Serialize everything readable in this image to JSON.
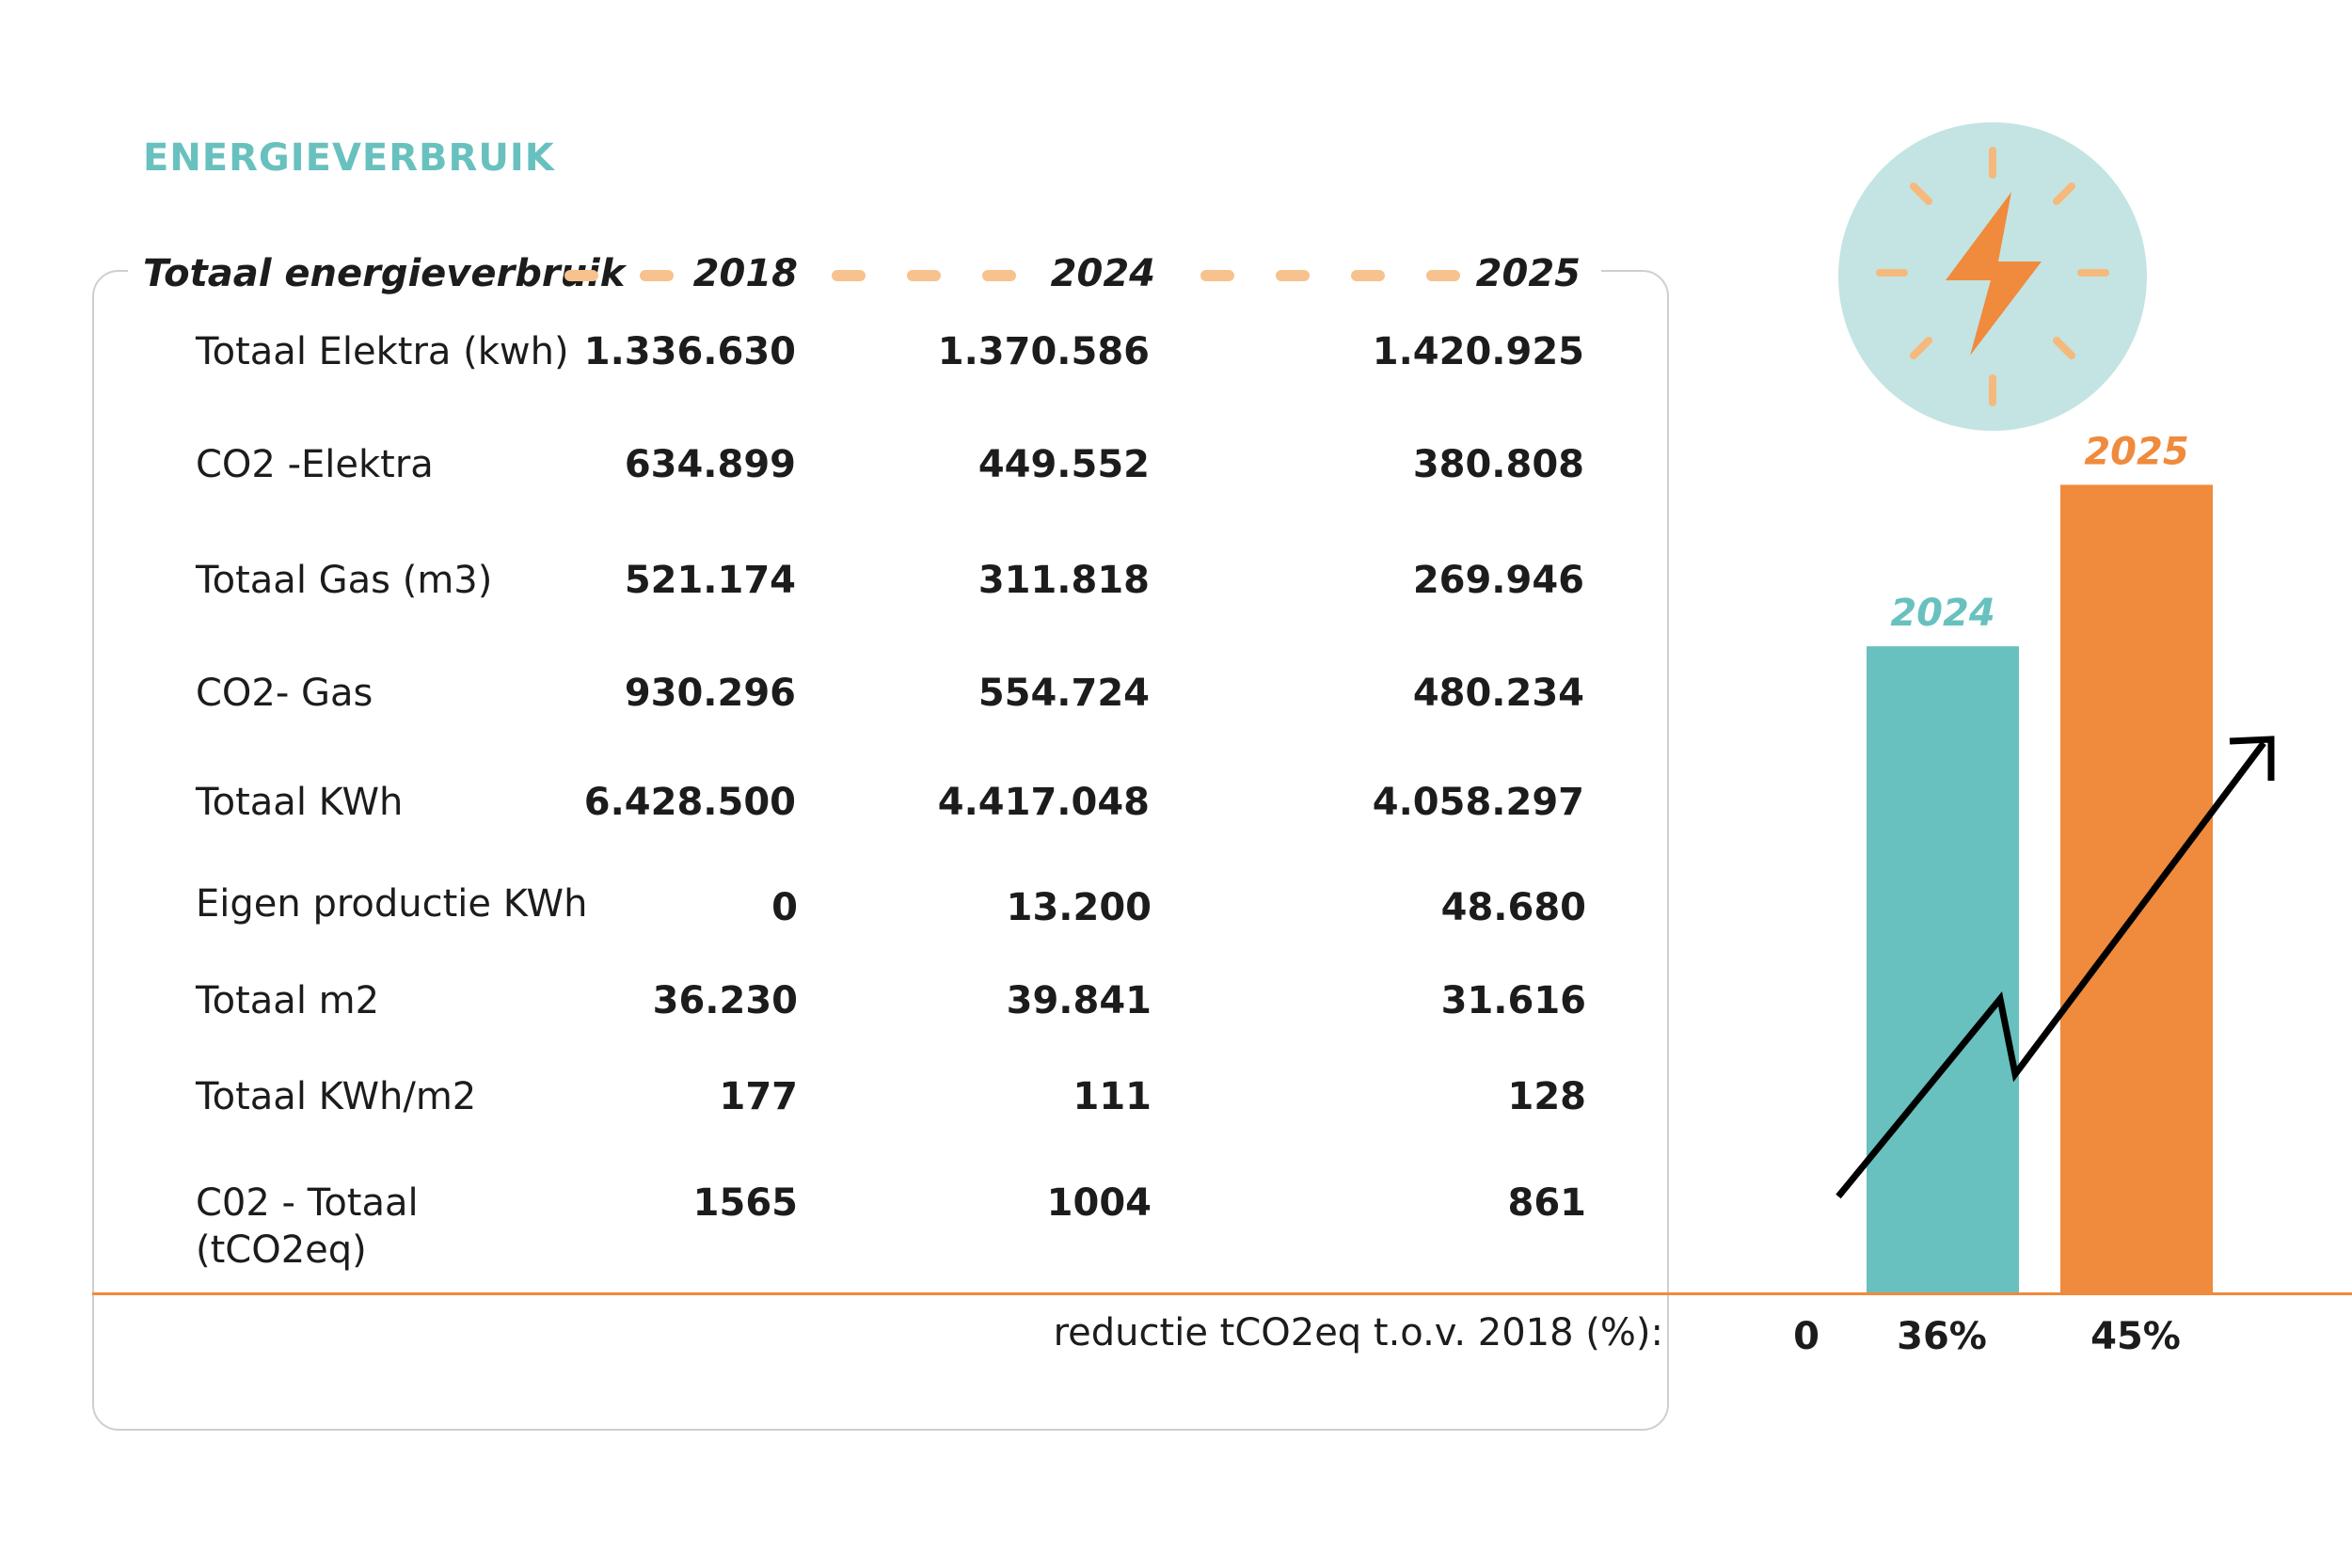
{
  "title": "ENERGIEVERBRUIK",
  "table": {
    "header_label": "Totaal energieverbruik",
    "years": [
      "2018",
      "2024",
      "2025"
    ],
    "rows": [
      {
        "label": "Totaal Elektra (kwh)",
        "values": [
          "1.336.630",
          "1.370.586",
          "1.420.925"
        ]
      },
      {
        "label": "CO2 -Elektra",
        "values": [
          "634.899",
          "449.552",
          "380.808"
        ]
      },
      {
        "label": "Totaal Gas (m3)",
        "values": [
          "521.174",
          "311.818",
          "269.946"
        ]
      },
      {
        "label": "CO2- Gas",
        "values": [
          "930.296",
          "554.724",
          "480.234"
        ]
      },
      {
        "label": "Totaal KWh",
        "values": [
          "6.428.500",
          "4.417.048",
          "4.058.297"
        ]
      },
      {
        "label": "Eigen productie KWh",
        "values": [
          "0",
          "13.200",
          "48.680"
        ]
      },
      {
        "label": "Totaal m2",
        "values": [
          "36.230",
          "39.841",
          "31.616"
        ]
      },
      {
        "label": "Totaal KWh/m2",
        "values": [
          "177",
          "111",
          "128"
        ]
      },
      {
        "label": "C02 - Totaal (tCO2eq)",
        "values": [
          "1565",
          "1004",
          "861"
        ]
      }
    ]
  },
  "reduction": {
    "label": "reductie tCO2eq t.o.v. 2018 (%):",
    "values": [
      "0",
      "36%",
      "45%"
    ]
  },
  "chart_data": {
    "type": "bar",
    "categories": [
      "2024",
      "2025"
    ],
    "values": [
      36,
      45
    ],
    "value_labels": [
      "36%",
      "45%"
    ],
    "title": "",
    "xlabel": "",
    "ylabel": "",
    "ylim": [
      0,
      50
    ],
    "grid": false,
    "legend": "none",
    "trend_arrow": "up"
  },
  "icon": "lightning-bolt-icon",
  "colors": {
    "teal": "#68C1BE",
    "orange": "#F08A3C",
    "dash": "#F7C28E",
    "icon_bg": "#C3E4E3",
    "icon_rays": "#F6B97C",
    "baseline": "#F08A3C",
    "text": "#1C1C1C",
    "card_border": "#CFCFCF"
  }
}
